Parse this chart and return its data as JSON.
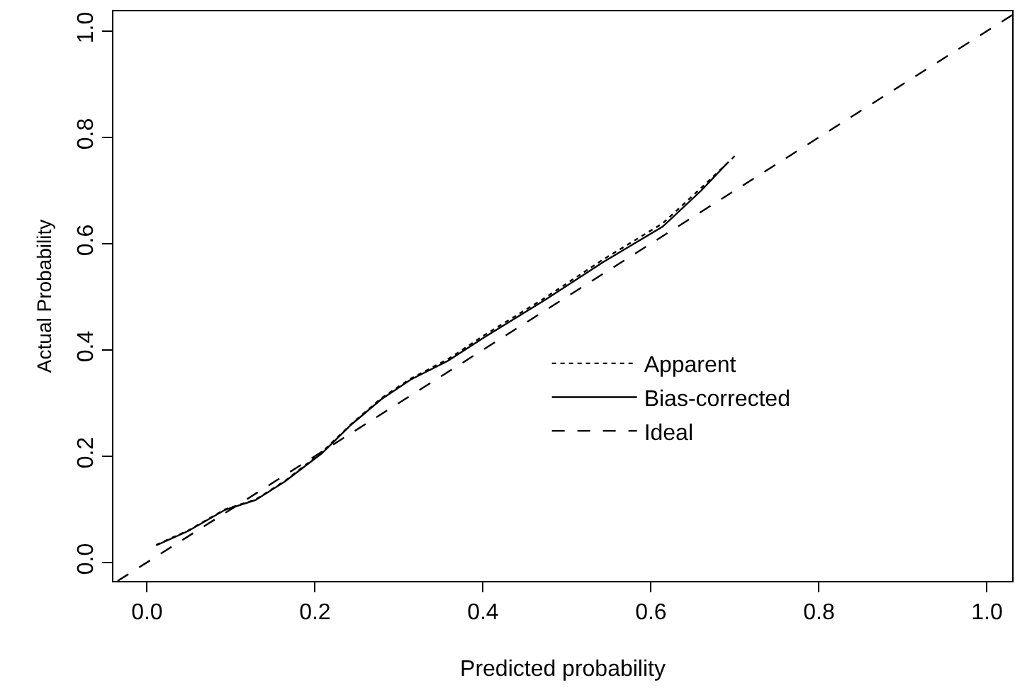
{
  "chart_data": {
    "type": "line",
    "xlabel": "Predicted probability",
    "ylabel": "Actual Probability",
    "xlim": [
      -0.04,
      1.03
    ],
    "ylim": [
      -0.035,
      1.037
    ],
    "xticks": [
      {
        "value": 0,
        "label": "0.0"
      },
      0.2,
      0.4,
      0.6,
      0.8,
      {
        "value": 1,
        "label": "1.0"
      }
    ],
    "yticks": [
      {
        "value": 0,
        "label": "0.0"
      },
      0.2,
      0.4,
      0.6,
      0.8,
      {
        "value": 1,
        "label": "1.0"
      }
    ],
    "legend": "bottom right",
    "marker": "none",
    "series": [
      {
        "name": "Apparent",
        "color": "#000000",
        "line_style": "dotted",
        "x": [
          0.011,
          0.049,
          0.093,
          0.129,
          0.164,
          0.208,
          0.243,
          0.279,
          0.314,
          0.358,
          0.402,
          0.473,
          0.543,
          0.614,
          0.66,
          0.7
        ],
        "values": [
          0.033,
          0.06,
          0.1,
          0.118,
          0.153,
          0.207,
          0.26,
          0.309,
          0.346,
          0.382,
          0.428,
          0.497,
          0.57,
          0.638,
          0.705,
          0.765
        ]
      },
      {
        "name": "Bias-corrected",
        "color": "#000000",
        "line_style": "solid",
        "x": [
          0.011,
          0.049,
          0.093,
          0.129,
          0.164,
          0.208,
          0.243,
          0.279,
          0.314,
          0.358,
          0.402,
          0.473,
          0.543,
          0.614,
          0.66,
          0.69
        ],
        "values": [
          0.032,
          0.059,
          0.099,
          0.117,
          0.152,
          0.205,
          0.259,
          0.307,
          0.344,
          0.379,
          0.424,
          0.493,
          0.565,
          0.632,
          0.7,
          0.75
        ]
      },
      {
        "name": "Ideal",
        "color": "#000000",
        "line_style": "dashed",
        "x": [
          -0.035,
          1.03
        ],
        "values": [
          -0.035,
          1.03
        ]
      }
    ]
  }
}
